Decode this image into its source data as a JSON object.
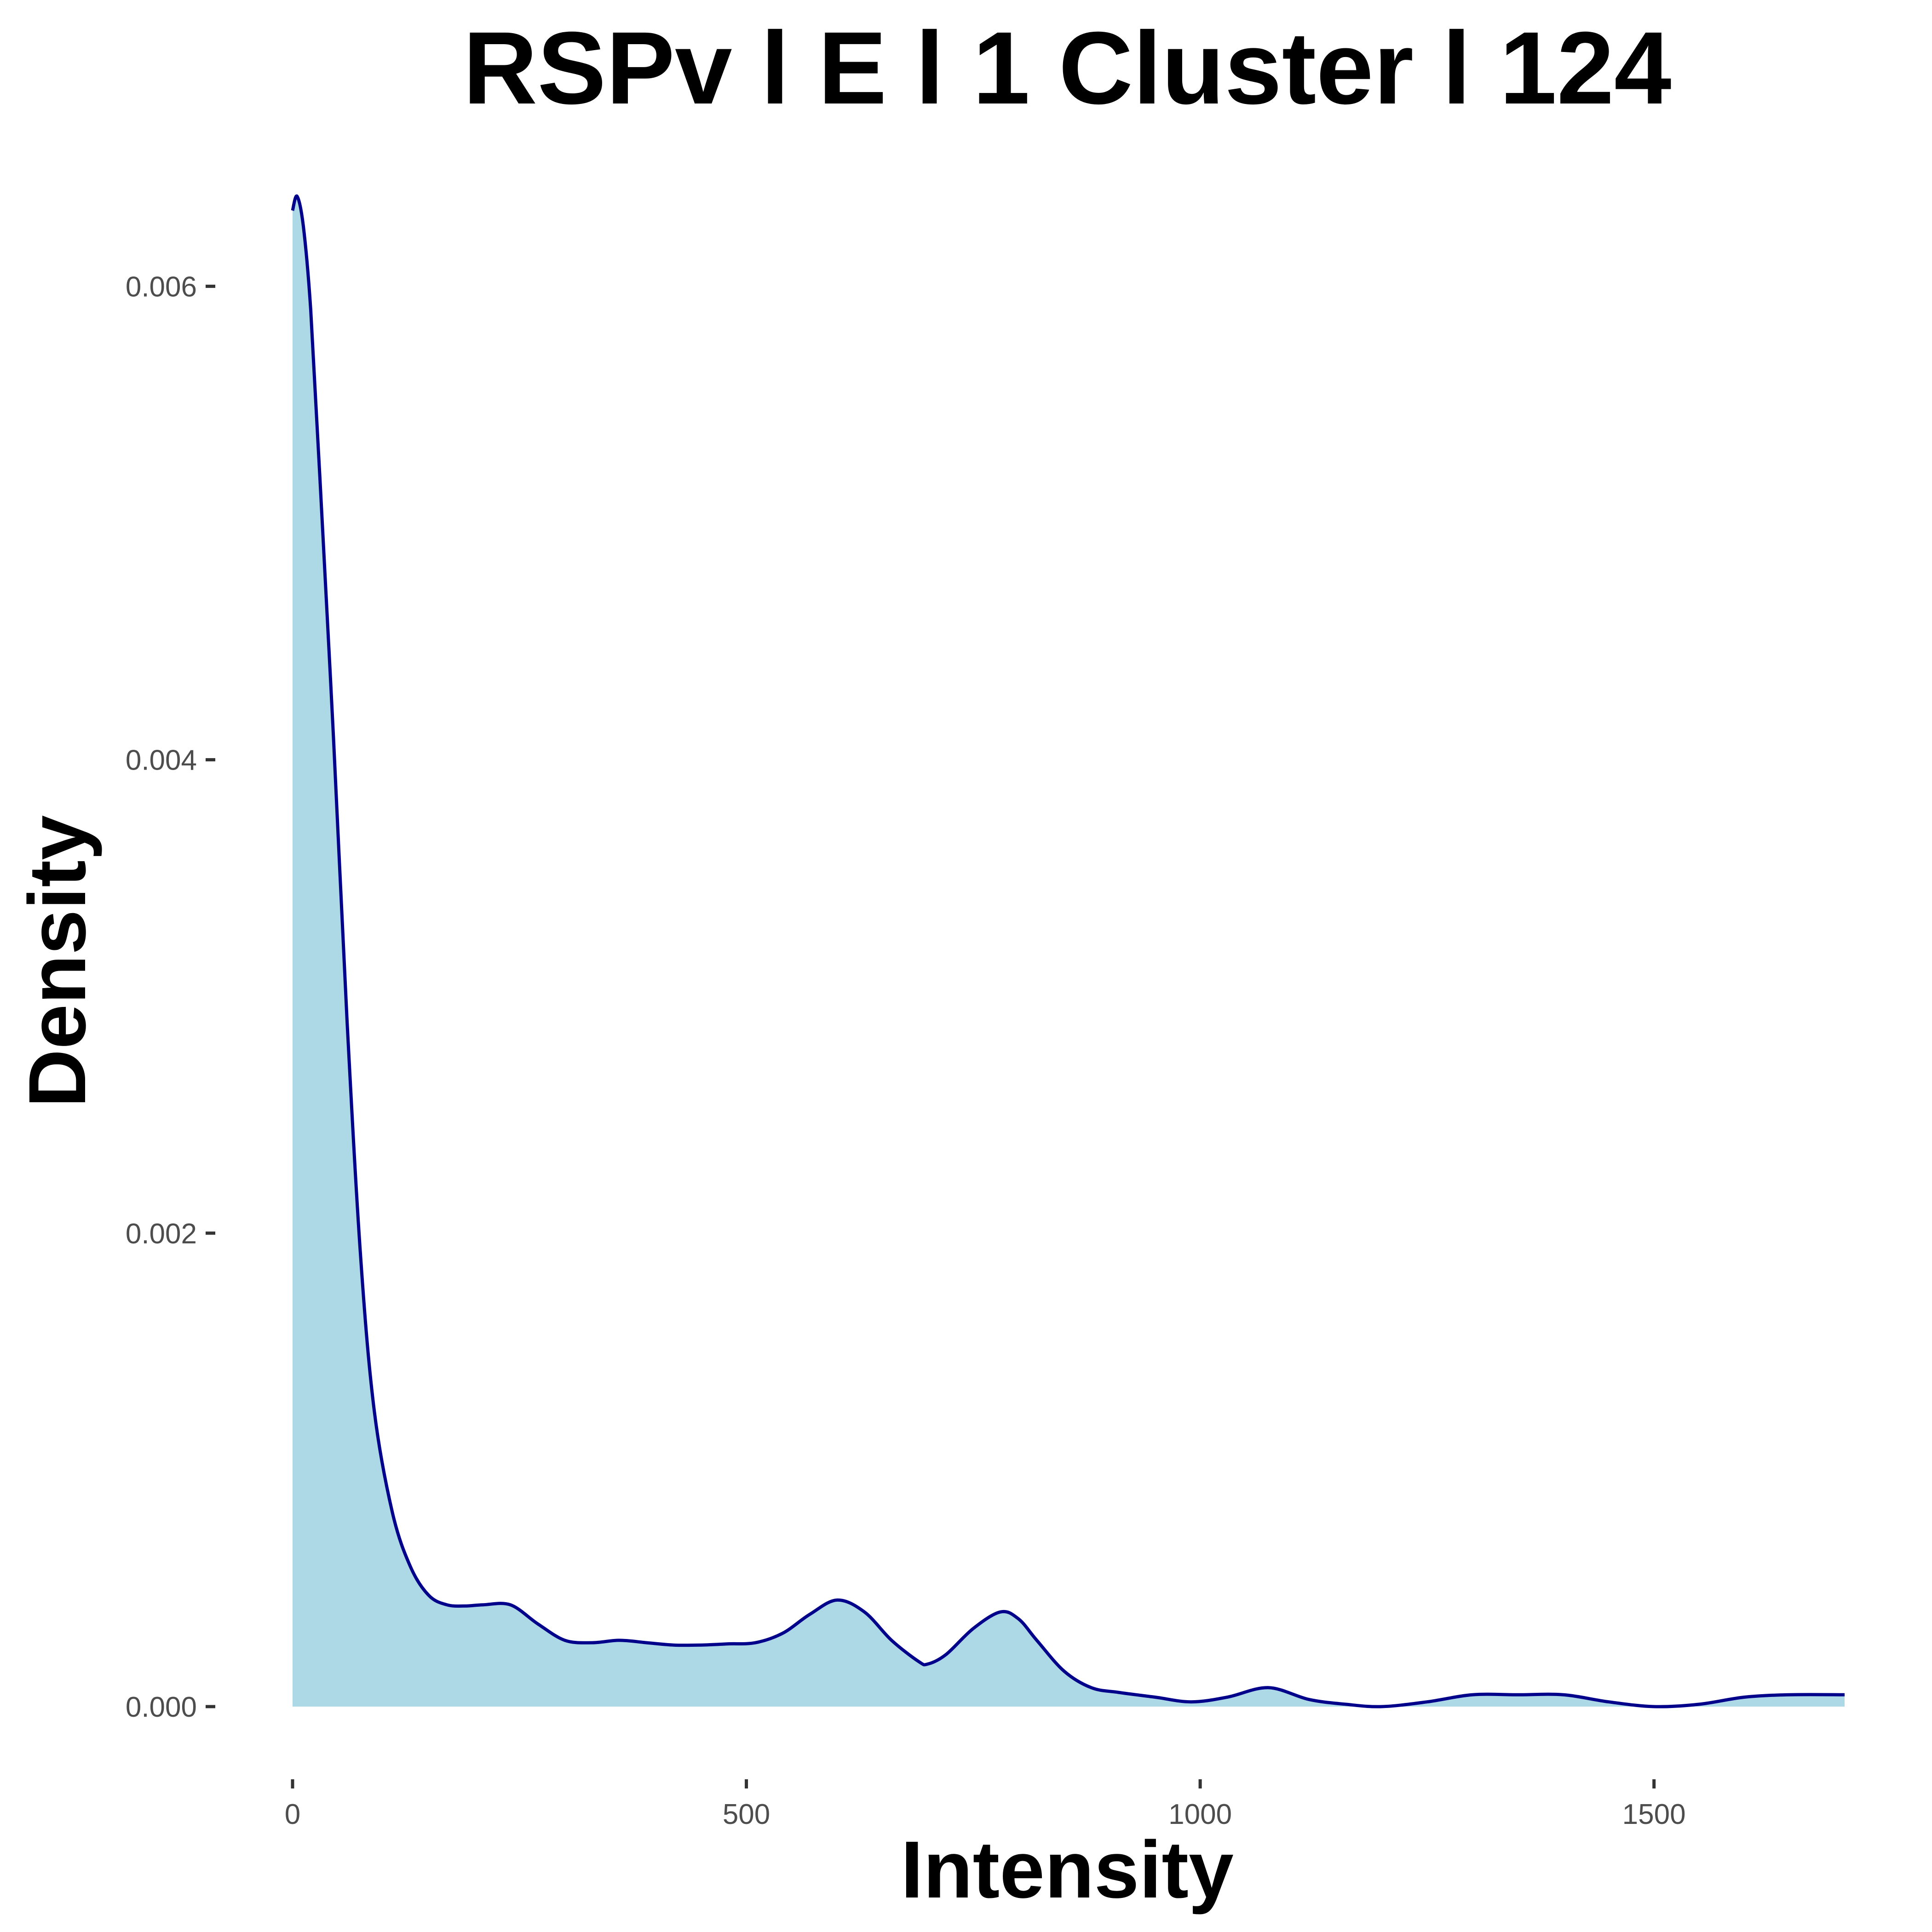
{
  "chart_data": {
    "type": "area",
    "title": "RSPv l E l 1 Cluster l  124",
    "xlabel": "Intensity",
    "ylabel": "Density",
    "xlim": [
      0,
      1710
    ],
    "ylim": [
      0,
      0.0063
    ],
    "x_ticks": [
      {
        "value": 0,
        "label": "0"
      },
      {
        "value": 500,
        "label": "500"
      },
      {
        "value": 1000,
        "label": "1000"
      },
      {
        "value": 1500,
        "label": "1500"
      }
    ],
    "y_ticks": [
      {
        "value": 0,
        "label": "0.000"
      },
      {
        "value": 0.002,
        "label": "0.002"
      },
      {
        "value": 0.004,
        "label": "0.004"
      },
      {
        "value": 0.006,
        "label": "0.006"
      }
    ],
    "grid": false,
    "legend": "none",
    "series": [
      {
        "x": [
          0,
          5,
          12,
          20,
          30,
          45,
          60,
          75,
          90,
          110,
          130,
          150,
          170,
          190,
          210,
          240,
          270,
          300,
          330,
          360,
          390,
          420,
          450,
          480,
          510,
          540,
          570,
          600,
          630,
          660,
          690,
          700,
          720,
          750,
          780,
          800,
          820,
          850,
          880,
          910,
          950,
          990,
          1030,
          1075,
          1120,
          1160,
          1200,
          1250,
          1300,
          1350,
          1400,
          1450,
          1500,
          1550,
          1600,
          1650,
          1710
        ],
        "y": [
          0.00632,
          0.00638,
          0.00625,
          0.0059,
          0.0052,
          0.0041,
          0.0029,
          0.0019,
          0.00125,
          0.00082,
          0.00059,
          0.00047,
          0.00043,
          0.000425,
          0.00043,
          0.00043,
          0.00035,
          0.00028,
          0.00027,
          0.00028,
          0.00027,
          0.00026,
          0.00026,
          0.000265,
          0.00027,
          0.00031,
          0.00039,
          0.00045,
          0.0004,
          0.00028,
          0.00019,
          0.00018,
          0.00022,
          0.00033,
          0.0004,
          0.00037,
          0.00028,
          0.00015,
          8e-05,
          6e-05,
          4e-05,
          2e-05,
          4e-05,
          8e-05,
          3e-05,
          1e-05,
          0.0,
          2e-05,
          5e-05,
          5e-05,
          5e-05,
          2e-05,
          0.0,
          1e-05,
          4e-05,
          5e-05,
          5e-05
        ]
      }
    ],
    "colors": {
      "fill": "#add8e6",
      "line": "#00008b"
    }
  }
}
